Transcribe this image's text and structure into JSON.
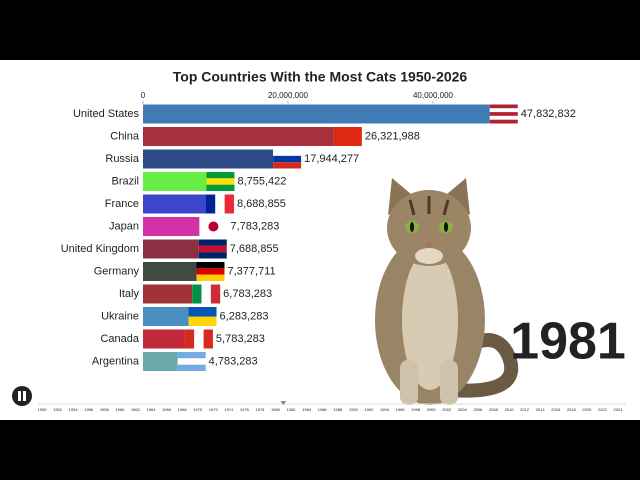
{
  "chart_data": {
    "type": "hbar",
    "title": "Top Countries With the Most Cats 1950-2026",
    "year": "1981",
    "categories": [
      "United States",
      "China",
      "Russia",
      "Brazil",
      "France",
      "Japan",
      "United Kingdom",
      "Germany",
      "Italy",
      "Ukraine",
      "Canada",
      "Argentina"
    ],
    "values": [
      47832832,
      26321988,
      17944277,
      8755422,
      8688855,
      7783283,
      7688855,
      7377711,
      6783283,
      6283283,
      5783283,
      4783283
    ],
    "value_labels": [
      "47,832,832",
      "26,321,988",
      "17,944,277",
      "8,755,422",
      "8,688,855",
      "7,783,283",
      "7,688,855",
      "7,377,711",
      "6,783,283",
      "6,283,283",
      "5,783,283",
      "4,783,283"
    ],
    "colors": [
      "#3f7cb6",
      "#a8303c",
      "#2f4c86",
      "#66ee44",
      "#3a47cc",
      "#d232a6",
      "#8a3042",
      "#3e4a42",
      "#a2323a",
      "#4a8fc2",
      "#c22a3a",
      "#6aa8aa"
    ],
    "xlim": [
      0,
      60000000
    ],
    "xticks": [
      0,
      {
        "value": 20000000,
        "label": "20,000,000"
      },
      {
        "value": 40000000,
        "label": "40,000,000"
      }
    ],
    "timeline_years": [
      1950,
      1952,
      1954,
      1956,
      1958,
      1960,
      1962,
      1964,
      1966,
      1968,
      1970,
      1972,
      1974,
      1976,
      1978,
      1980,
      1982,
      1984,
      1986,
      1988,
      1990,
      1992,
      1994,
      1996,
      1998,
      2000,
      2002,
      2004,
      2006,
      2008,
      2010,
      2012,
      2014,
      2016,
      2018,
      2020,
      2022,
      2024
    ]
  }
}
